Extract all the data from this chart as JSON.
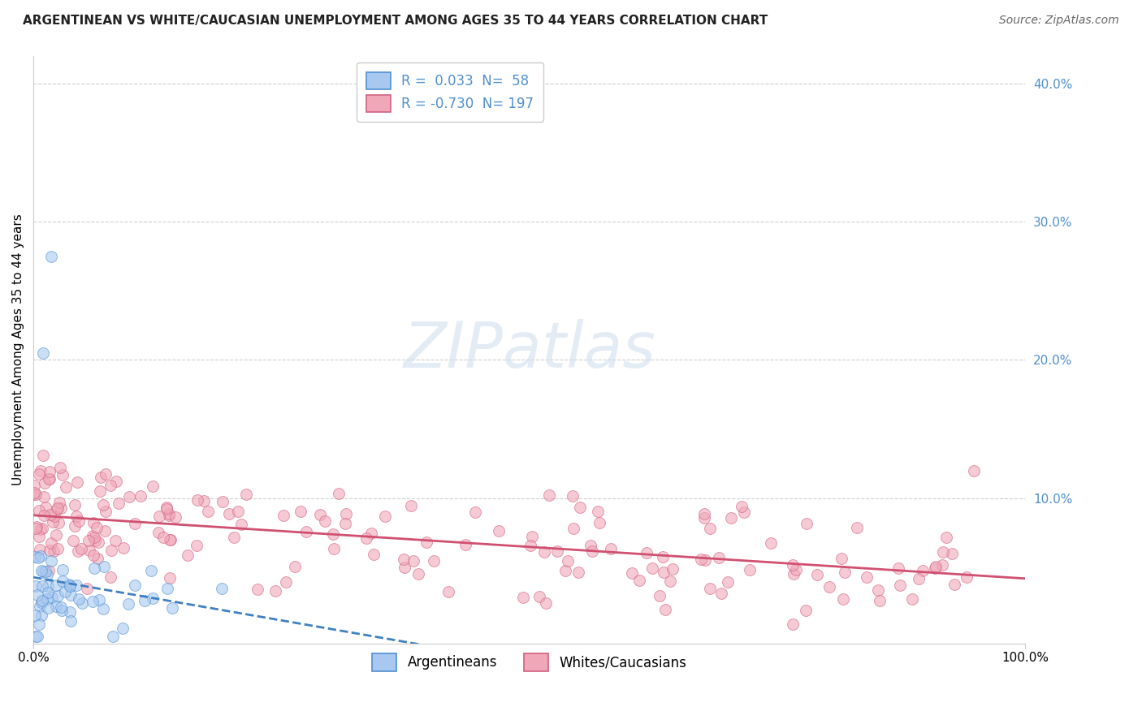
{
  "title": "ARGENTINEAN VS WHITE/CAUCASIAN UNEMPLOYMENT AMONG AGES 35 TO 44 YEARS CORRELATION CHART",
  "source": "Source: ZipAtlas.com",
  "ylabel": "Unemployment Among Ages 35 to 44 years",
  "xlim": [
    0,
    1.0
  ],
  "ylim": [
    -0.005,
    0.42
  ],
  "yticks": [
    0.1,
    0.2,
    0.3,
    0.4
  ],
  "ytick_labels": [
    "10.0%",
    "20.0%",
    "30.0%",
    "40.0%"
  ],
  "xticks": [
    0.0,
    1.0
  ],
  "xtick_labels": [
    "0.0%",
    "100.0%"
  ],
  "legend_labels": [
    "Argentineans",
    "Whites/Caucasians"
  ],
  "legend_r": [
    0.033,
    -0.73
  ],
  "legend_n": [
    58,
    197
  ],
  "blue_color": "#a8c8f0",
  "pink_color": "#f0a8b8",
  "blue_edge_color": "#5090d0",
  "pink_edge_color": "#d06080",
  "blue_line_color": "#4080c0",
  "pink_line_color": "#d05070",
  "tick_label_color": "#5090d0",
  "background_color": "#ffffff",
  "watermark_text": "ZIPatlas",
  "title_fontsize": 11,
  "source_fontsize": 10,
  "axis_label_fontsize": 11,
  "tick_fontsize": 11,
  "legend_fontsize": 12,
  "seed": 42,
  "n_blue": 58,
  "n_pink": 197
}
